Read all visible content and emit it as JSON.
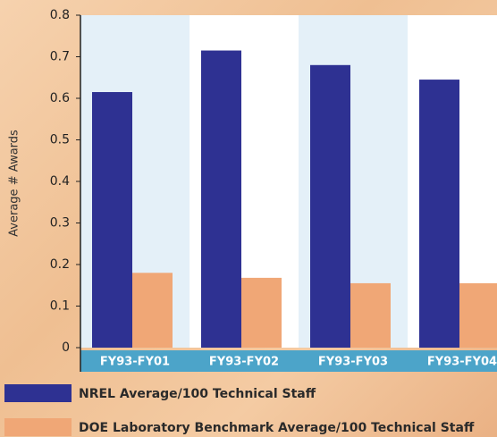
{
  "chart_data": {
    "type": "bar",
    "y_label": "Average # Awards",
    "categories": [
      "FY93-FY01",
      "FY93-FY02",
      "FY93-FY03",
      "FY93-FY04"
    ],
    "series": [
      {
        "name": "NREL Average/100 Technical Staff",
        "color": "#2e3192",
        "values": [
          0.615,
          0.715,
          0.68,
          0.645
        ]
      },
      {
        "name": "DOE Laboratory Benchmark Average/100 Technical Staff",
        "color": "#f0a776",
        "values": [
          0.18,
          0.168,
          0.155,
          0.155
        ]
      }
    ],
    "ylim": [
      0,
      0.8
    ],
    "yticks": [
      0,
      0.1,
      0.2,
      0.3,
      0.4,
      0.5,
      0.6,
      0.7,
      0.8
    ]
  }
}
